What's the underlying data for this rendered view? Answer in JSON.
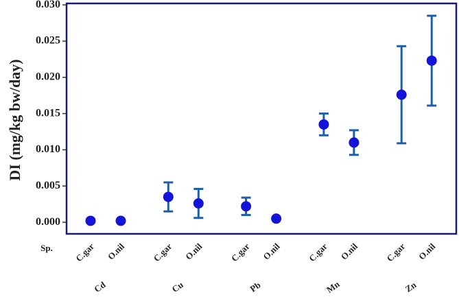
{
  "chart_data": {
    "type": "scatter",
    "y_label": "DI (mg/kg bw/day)",
    "x_level_label": "Sp.",
    "categories": [
      "C.gar",
      "O.nil",
      "C.gar",
      "O.nil",
      "C.gar",
      "O.nil",
      "C.gar",
      "O.nil",
      "C.gar",
      "O.nil"
    ],
    "groups": [
      "Cd",
      "Cu",
      "Pb",
      "Mn",
      "Zn"
    ],
    "values": [
      0.0002,
      0.0002,
      0.0035,
      0.0026,
      0.0022,
      0.0005,
      0.0135,
      0.011,
      0.0176,
      0.0223
    ],
    "errors": [
      null,
      null,
      0.002,
      0.002,
      0.0012,
      null,
      0.0015,
      0.0017,
      0.0067,
      0.0062
    ],
    "color": "#1414d8",
    "error_color": "#1f5fa8",
    "ylim": [
      -0.0016,
      0.0302
    ],
    "yticks": [
      {
        "value": 0,
        "label": "0.000"
      },
      {
        "value": 0.005,
        "label": "0.005"
      },
      {
        "value": 0.01,
        "label": "0.010"
      },
      {
        "value": 0.015,
        "label": "0.015"
      },
      {
        "value": 0.02,
        "label": "0.020"
      },
      {
        "value": 0.025,
        "label": "0.025"
      },
      {
        "value": 0.03,
        "label": "0.030"
      }
    ]
  }
}
